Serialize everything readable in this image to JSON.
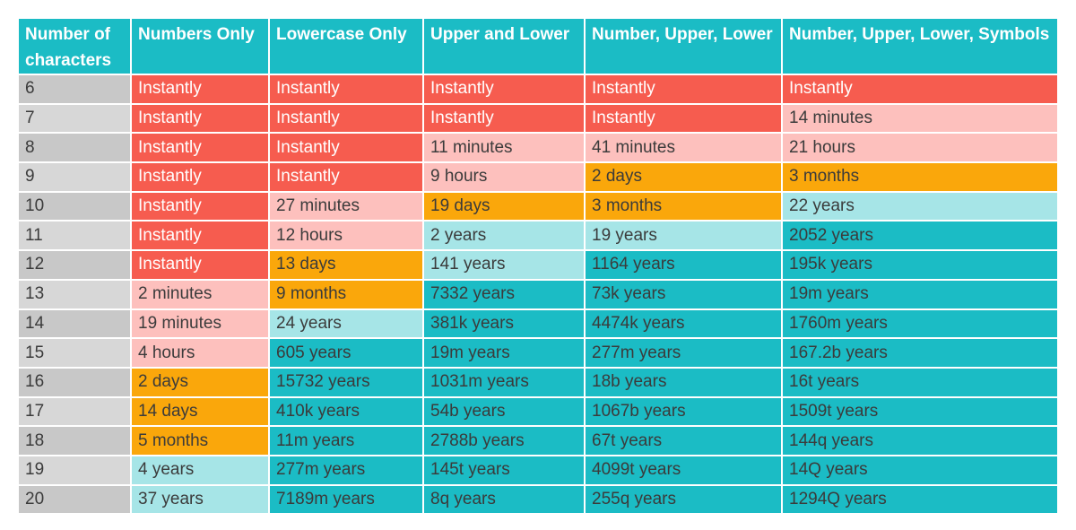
{
  "table": {
    "headers": [
      "Number of characters",
      "Numbers Only",
      "Lowercase Only",
      "Upper and Lower",
      "Number, Upper, Lower",
      "Number, Upper, Lower, Symbols"
    ],
    "rows": [
      {
        "chars": "6",
        "cells": [
          {
            "text": "Instantly",
            "color": "red"
          },
          {
            "text": "Instantly",
            "color": "red"
          },
          {
            "text": "Instantly",
            "color": "red"
          },
          {
            "text": "Instantly",
            "color": "red"
          },
          {
            "text": "Instantly",
            "color": "red"
          }
        ]
      },
      {
        "chars": "7",
        "cells": [
          {
            "text": "Instantly",
            "color": "red"
          },
          {
            "text": "Instantly",
            "color": "red"
          },
          {
            "text": "Instantly",
            "color": "red"
          },
          {
            "text": "Instantly",
            "color": "red"
          },
          {
            "text": "14 minutes",
            "color": "pink"
          }
        ]
      },
      {
        "chars": "8",
        "cells": [
          {
            "text": "Instantly",
            "color": "red"
          },
          {
            "text": "Instantly",
            "color": "red"
          },
          {
            "text": "11 minutes",
            "color": "pink"
          },
          {
            "text": "41 minutes",
            "color": "pink"
          },
          {
            "text": "21 hours",
            "color": "pink"
          }
        ]
      },
      {
        "chars": "9",
        "cells": [
          {
            "text": "Instantly",
            "color": "red"
          },
          {
            "text": "Instantly",
            "color": "red"
          },
          {
            "text": "9 hours",
            "color": "pink"
          },
          {
            "text": "2 days",
            "color": "orange"
          },
          {
            "text": "3 months",
            "color": "orange"
          }
        ]
      },
      {
        "chars": "10",
        "cells": [
          {
            "text": "Instantly",
            "color": "red"
          },
          {
            "text": "27 minutes",
            "color": "pink"
          },
          {
            "text": "19 days",
            "color": "orange"
          },
          {
            "text": "3 months",
            "color": "orange"
          },
          {
            "text": "22 years",
            "color": "lteal"
          }
        ]
      },
      {
        "chars": "11",
        "cells": [
          {
            "text": "Instantly",
            "color": "red"
          },
          {
            "text": "12 hours",
            "color": "pink"
          },
          {
            "text": "2 years",
            "color": "lteal"
          },
          {
            "text": "19 years",
            "color": "lteal"
          },
          {
            "text": "2052 years",
            "color": "teal"
          }
        ]
      },
      {
        "chars": "12",
        "cells": [
          {
            "text": "Instantly",
            "color": "red"
          },
          {
            "text": "13 days",
            "color": "orange"
          },
          {
            "text": "141 years",
            "color": "lteal"
          },
          {
            "text": "1164 years",
            "color": "teal"
          },
          {
            "text": "195k years",
            "color": "teal"
          }
        ]
      },
      {
        "chars": "13",
        "cells": [
          {
            "text": "2 minutes",
            "color": "pink"
          },
          {
            "text": "9 months",
            "color": "orange"
          },
          {
            "text": "7332 years",
            "color": "teal"
          },
          {
            "text": "73k years",
            "color": "teal"
          },
          {
            "text": "19m years",
            "color": "teal"
          }
        ]
      },
      {
        "chars": "14",
        "cells": [
          {
            "text": "19 minutes",
            "color": "pink"
          },
          {
            "text": "24 years",
            "color": "lteal"
          },
          {
            "text": "381k years",
            "color": "teal"
          },
          {
            "text": "4474k years",
            "color": "teal"
          },
          {
            "text": "1760m years",
            "color": "teal"
          }
        ]
      },
      {
        "chars": "15",
        "cells": [
          {
            "text": "4 hours",
            "color": "pink"
          },
          {
            "text": "605 years",
            "color": "teal"
          },
          {
            "text": "19m years",
            "color": "teal"
          },
          {
            "text": "277m years",
            "color": "teal"
          },
          {
            "text": "167.2b years",
            "color": "teal"
          }
        ]
      },
      {
        "chars": "16",
        "cells": [
          {
            "text": "2 days",
            "color": "orange"
          },
          {
            "text": "15732 years",
            "color": "teal"
          },
          {
            "text": "1031m years",
            "color": "teal"
          },
          {
            "text": "18b years",
            "color": "teal"
          },
          {
            "text": "16t years",
            "color": "teal"
          }
        ]
      },
      {
        "chars": "17",
        "cells": [
          {
            "text": "14 days",
            "color": "orange"
          },
          {
            "text": "410k years",
            "color": "teal"
          },
          {
            "text": "54b years",
            "color": "teal"
          },
          {
            "text": "1067b years",
            "color": "teal"
          },
          {
            "text": "1509t years",
            "color": "teal"
          }
        ]
      },
      {
        "chars": "18",
        "cells": [
          {
            "text": "5 months",
            "color": "orange"
          },
          {
            "text": "11m years",
            "color": "teal"
          },
          {
            "text": "2788b years",
            "color": "teal"
          },
          {
            "text": "67t years",
            "color": "teal"
          },
          {
            "text": "144q years",
            "color": "teal"
          }
        ]
      },
      {
        "chars": "19",
        "cells": [
          {
            "text": "4 years",
            "color": "lteal"
          },
          {
            "text": "277m years",
            "color": "teal"
          },
          {
            "text": "145t years",
            "color": "teal"
          },
          {
            "text": "4099t years",
            "color": "teal"
          },
          {
            "text": "14Q years",
            "color": "teal"
          }
        ]
      },
      {
        "chars": "20",
        "cells": [
          {
            "text": "37 years",
            "color": "lteal"
          },
          {
            "text": "7189m years",
            "color": "teal"
          },
          {
            "text": "8q years",
            "color": "teal"
          },
          {
            "text": "255q years",
            "color": "teal"
          },
          {
            "text": "1294Q years",
            "color": "teal"
          }
        ]
      }
    ]
  },
  "colors": {
    "header": "#1bbcc5",
    "red": "#f65c4f",
    "pink": "#fdc0bd",
    "orange": "#faa70b",
    "lteal": "#a6e5e7",
    "teal": "#1bbcc5",
    "rowhead": "#d7d7d7"
  }
}
